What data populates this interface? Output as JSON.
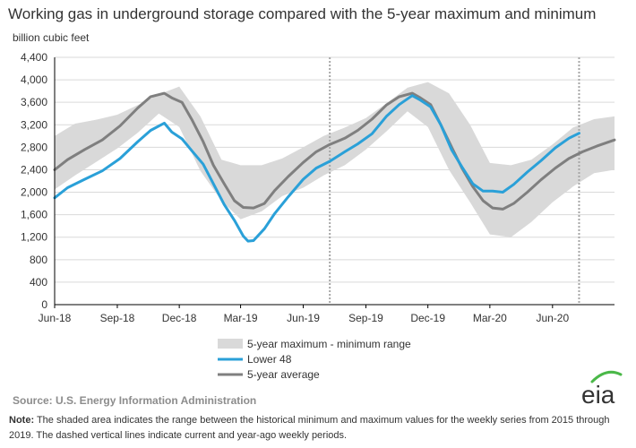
{
  "title": "Working gas in underground  storage compared with the 5-year maximum and minimum",
  "source": "Source:  U.S. Energy Information Administration",
  "note_label": "Note:",
  "note_text": " The shaded area indicates the range between the historical minimum and maximum values for the weekly series from 2015 through 2019. The dashed vertical lines indicate current and year-ago weekly periods.",
  "logo_text": "eia",
  "colors": {
    "range": "#d9d9d9",
    "lower48": "#2aa0d8",
    "average": "#7f7f7f",
    "grid": "#d9d9d9",
    "dashed": "#a6a6a6",
    "logo_arc": "#4ab848"
  },
  "chart_data": {
    "type": "line",
    "ylabel": "billion cubic feet",
    "ylim": [
      0,
      4400
    ],
    "yticks": [
      0,
      400,
      800,
      1200,
      1600,
      2000,
      2400,
      2800,
      3200,
      3600,
      4000,
      4400
    ],
    "ytick_labels": [
      "0",
      "400",
      "800",
      "1,200",
      "1,600",
      "2,000",
      "2,400",
      "2,800",
      "3,200",
      "3,600",
      "4,000",
      "4,400"
    ],
    "xlim": [
      "2018-06-01",
      "2020-08-31"
    ],
    "x_ticks": [
      {
        "date": "2018-06-01",
        "label": "Jun-18"
      },
      {
        "date": "2018-09-01",
        "label": "Sep-18"
      },
      {
        "date": "2018-12-01",
        "label": "Dec-18"
      },
      {
        "date": "2019-03-01",
        "label": "Mar-19"
      },
      {
        "date": "2019-06-01",
        "label": "Jun-19"
      },
      {
        "date": "2019-09-01",
        "label": "Sep-19"
      },
      {
        "date": "2019-12-01",
        "label": "Dec-19"
      },
      {
        "date": "2020-03-01",
        "label": "Mar-20"
      },
      {
        "date": "2020-06-01",
        "label": "Jun-20"
      }
    ],
    "grid": "horizontal",
    "legend_position": "bottom",
    "dashed_lines": [
      "2019-07-10",
      "2020-07-10"
    ],
    "series": [
      {
        "name": "5-year maximum - minimum range",
        "kind": "band",
        "x": [
          "2018-06-01",
          "2018-07-01",
          "2018-08-01",
          "2018-09-01",
          "2018-10-01",
          "2018-11-01",
          "2018-12-01",
          "2019-01-01",
          "2019-02-01",
          "2019-03-01",
          "2019-04-01",
          "2019-05-01",
          "2019-06-01",
          "2019-07-01",
          "2019-08-01",
          "2019-09-01",
          "2019-10-01",
          "2019-11-01",
          "2019-12-01",
          "2020-01-01",
          "2020-02-01",
          "2020-03-01",
          "2020-04-01",
          "2020-05-01",
          "2020-06-01",
          "2020-07-01",
          "2020-08-01",
          "2020-08-31"
        ],
        "upper": [
          3000,
          3220,
          3290,
          3380,
          3550,
          3740,
          3880,
          3350,
          2580,
          2480,
          2480,
          2600,
          2800,
          3000,
          3150,
          3320,
          3580,
          3860,
          3960,
          3760,
          3200,
          2520,
          2480,
          2580,
          2850,
          3150,
          3300,
          3350
        ],
        "lower": [
          2050,
          2300,
          2540,
          2780,
          3060,
          3400,
          3160,
          2380,
          1850,
          1520,
          1660,
          1930,
          2080,
          2300,
          2480,
          2760,
          3080,
          3440,
          3160,
          2400,
          1820,
          1250,
          1200,
          1470,
          1820,
          2100,
          2340,
          2400
        ]
      },
      {
        "name": "Lower 48",
        "kind": "line",
        "x": [
          "2018-06-01",
          "2018-06-20",
          "2018-07-15",
          "2018-08-10",
          "2018-09-05",
          "2018-10-01",
          "2018-10-20",
          "2018-11-09",
          "2018-11-20",
          "2018-12-05",
          "2018-12-20",
          "2019-01-05",
          "2019-01-20",
          "2019-02-05",
          "2019-02-20",
          "2019-03-05",
          "2019-03-12",
          "2019-03-20",
          "2019-04-05",
          "2019-04-20",
          "2019-05-10",
          "2019-06-01",
          "2019-06-20",
          "2019-07-10",
          "2019-08-01",
          "2019-08-20",
          "2019-09-10",
          "2019-10-01",
          "2019-10-20",
          "2019-11-08",
          "2019-11-20",
          "2019-12-05",
          "2019-12-20",
          "2020-01-05",
          "2020-01-20",
          "2020-02-05",
          "2020-02-20",
          "2020-03-05",
          "2020-03-20",
          "2020-04-05",
          "2020-04-25",
          "2020-05-15",
          "2020-06-05",
          "2020-06-25",
          "2020-07-10"
        ],
        "y": [
          1900,
          2080,
          2230,
          2380,
          2600,
          2900,
          3100,
          3230,
          3070,
          2950,
          2730,
          2500,
          2150,
          1780,
          1500,
          1220,
          1130,
          1140,
          1350,
          1620,
          1920,
          2230,
          2430,
          2550,
          2720,
          2860,
          3040,
          3350,
          3560,
          3720,
          3640,
          3520,
          3200,
          2750,
          2450,
          2150,
          2020,
          2020,
          2000,
          2140,
          2360,
          2560,
          2790,
          2960,
          3050
        ]
      },
      {
        "name": "5-year average",
        "kind": "line",
        "x": [
          "2018-06-01",
          "2018-06-20",
          "2018-07-15",
          "2018-08-10",
          "2018-09-05",
          "2018-10-01",
          "2018-10-20",
          "2018-11-09",
          "2018-11-20",
          "2018-12-05",
          "2018-12-20",
          "2019-01-05",
          "2019-01-20",
          "2019-02-05",
          "2019-02-20",
          "2019-03-05",
          "2019-03-20",
          "2019-04-05",
          "2019-04-20",
          "2019-05-10",
          "2019-06-01",
          "2019-06-20",
          "2019-07-10",
          "2019-08-01",
          "2019-08-20",
          "2019-09-10",
          "2019-10-01",
          "2019-10-20",
          "2019-11-08",
          "2019-11-20",
          "2019-12-05",
          "2019-12-20",
          "2020-01-05",
          "2020-01-20",
          "2020-02-05",
          "2020-02-20",
          "2020-03-05",
          "2020-03-20",
          "2020-04-05",
          "2020-04-25",
          "2020-05-15",
          "2020-06-05",
          "2020-06-25",
          "2020-07-15",
          "2020-08-05",
          "2020-08-31"
        ],
        "y": [
          2400,
          2580,
          2760,
          2930,
          3180,
          3500,
          3700,
          3760,
          3680,
          3600,
          3280,
          2900,
          2480,
          2150,
          1850,
          1730,
          1720,
          1800,
          2030,
          2280,
          2530,
          2720,
          2850,
          2960,
          3100,
          3300,
          3550,
          3700,
          3760,
          3680,
          3560,
          3200,
          2800,
          2430,
          2100,
          1850,
          1720,
          1700,
          1800,
          2000,
          2220,
          2430,
          2600,
          2720,
          2820,
          2930
        ]
      }
    ]
  }
}
